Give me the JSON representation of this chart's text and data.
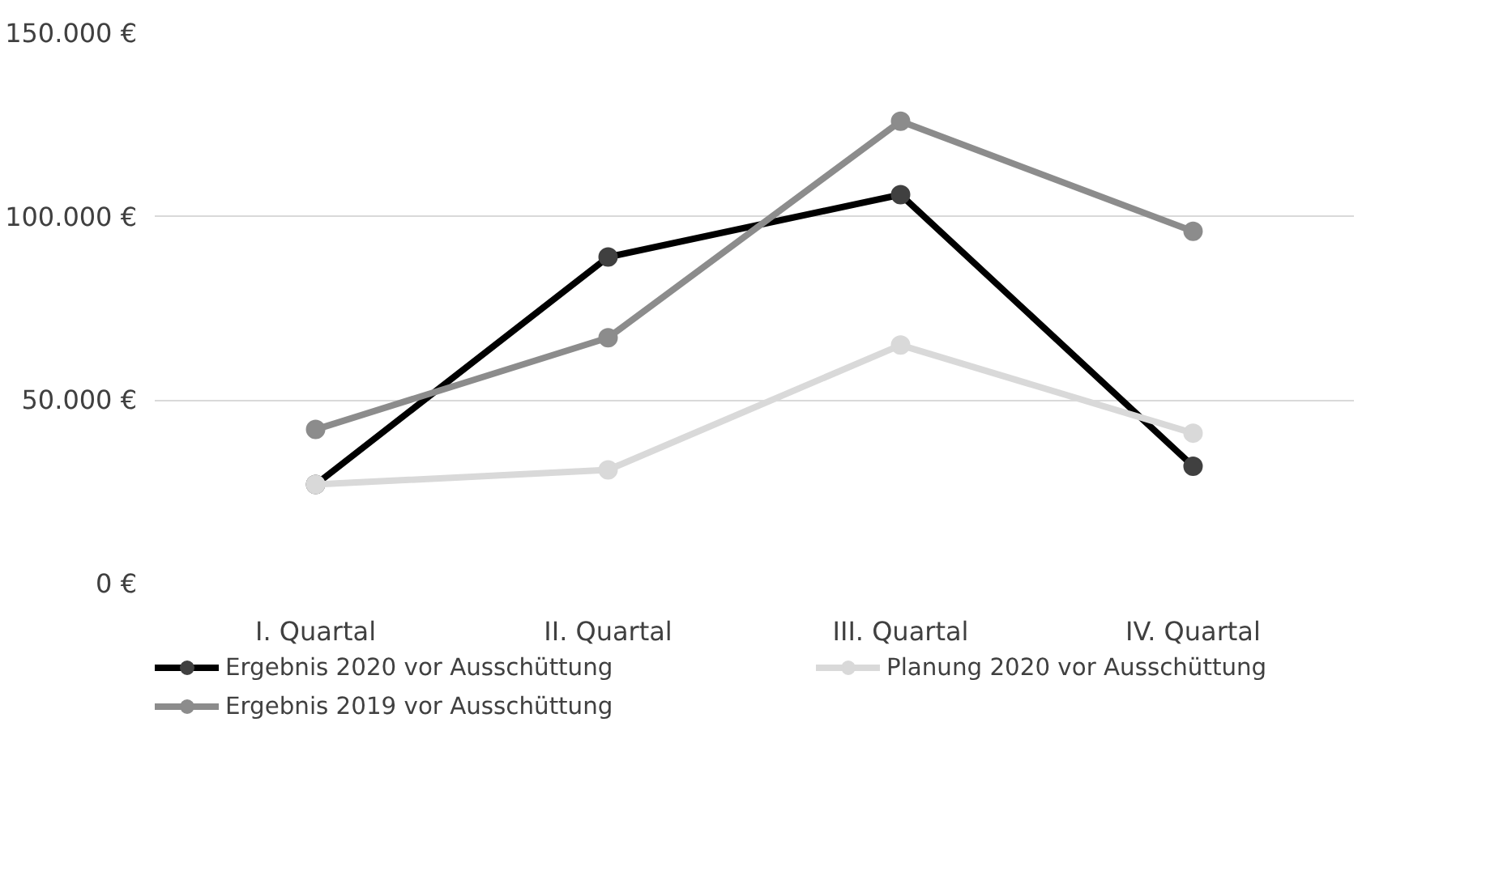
{
  "chart_data": {
    "type": "line",
    "categories": [
      "I. Quartal",
      "II. Quartal",
      "III. Quartal",
      "IV. Quartal"
    ],
    "series": [
      {
        "name": "Ergebnis 2020 vor Ausschüttung",
        "color": "#000000",
        "values": [
          27000,
          89000,
          106000,
          32000
        ]
      },
      {
        "name": "Planung 2020 vor Ausschüttung",
        "color": "#d9d9d9",
        "values": [
          27000,
          31000,
          65000,
          41000
        ]
      },
      {
        "name": "Ergebnis 2019 vor Ausschüttung",
        "color": "#8c8c8c",
        "values": [
          42000,
          67000,
          126000,
          96000
        ]
      }
    ],
    "ylim": [
      0,
      150000
    ],
    "yticks": [
      {
        "value": 0,
        "label": "0 €"
      },
      {
        "value": 50000,
        "label": "50.000 €"
      },
      {
        "value": 100000,
        "label": "100.000 €"
      },
      {
        "value": 150000,
        "label": "150.000 €"
      }
    ],
    "grid": "y",
    "legend": "bottom",
    "marker": "circle",
    "line_style": "solid"
  }
}
